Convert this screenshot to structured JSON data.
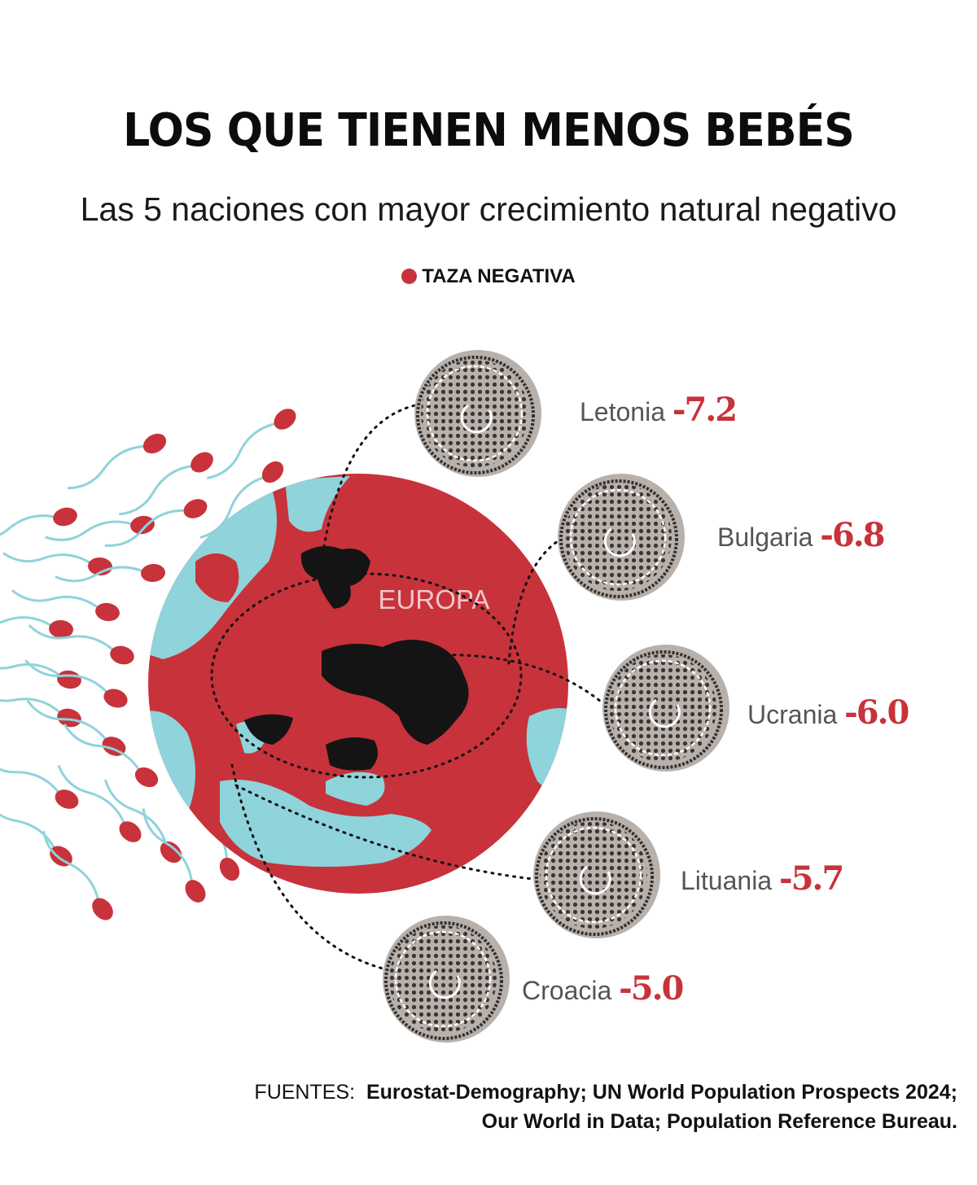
{
  "title": "LOS QUE TIENEN MENOS BEBÉS",
  "subtitle": "Las 5 naciones con mayor crecimiento natural negativo",
  "legend": {
    "label": "TAZA NEGATIVA",
    "color": "#c8323a"
  },
  "map": {
    "region_label": "EUROPA"
  },
  "sources": {
    "label": "FUENTES:",
    "line1": "Eurostat-Demography; UN World Population Prospects 2024;",
    "line2": "Our World in Data; Population Reference Bureau."
  },
  "colors": {
    "accent_red": "#c8323a",
    "water": "#8fd3db",
    "disc": "#b8b0aa",
    "text_gray": "#555555"
  },
  "chart_data": {
    "type": "bar",
    "categories": [
      "Letonia",
      "Bulgaria",
      "Ucrania",
      "Lituania",
      "Croacia"
    ],
    "values": [
      -7.2,
      -6.8,
      -6.0,
      -5.7,
      -5.0
    ],
    "value_labels": [
      "-7.2",
      "-6.8",
      "-6.0",
      "-5.7",
      "-5.0"
    ],
    "series": [
      {
        "name": "TAZA NEGATIVA",
        "values": [
          -7.2,
          -6.8,
          -6.0,
          -5.7,
          -5.0
        ]
      }
    ]
  }
}
